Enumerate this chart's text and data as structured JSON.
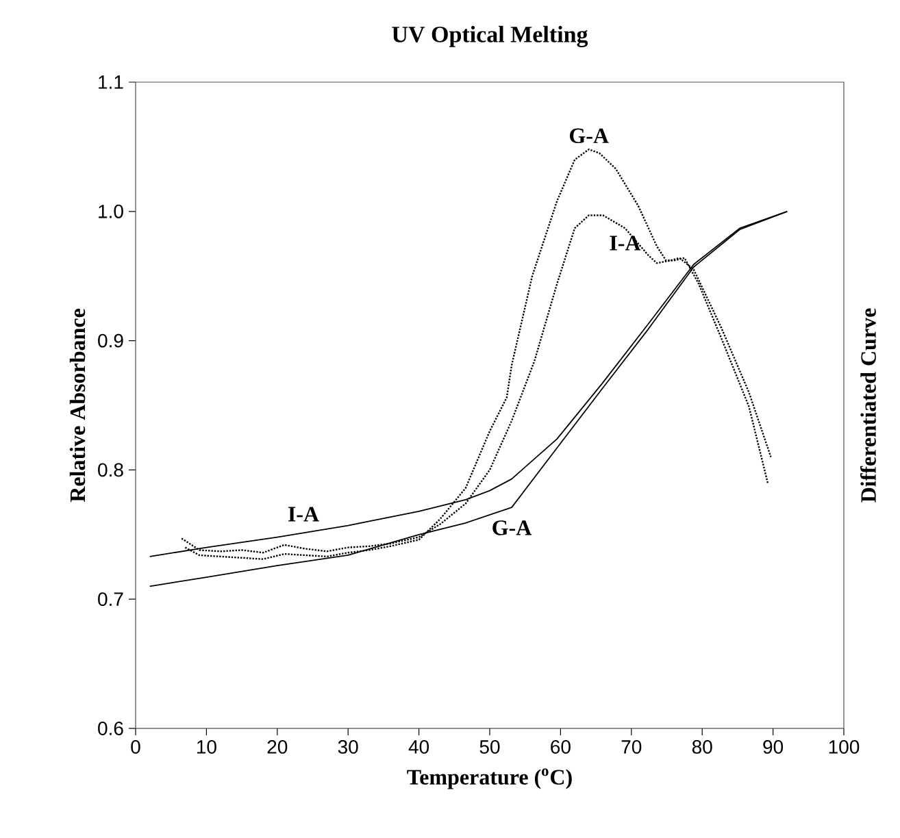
{
  "chart_data": {
    "type": "line",
    "title": "UV Optical Melting",
    "xlabel": "Temperature ($^{o}$C)",
    "ylabel": "Relative Absorbance",
    "y2label": "Differentiated Curve",
    "xlim": [
      0,
      100
    ],
    "xticks": [
      0,
      10,
      20,
      30,
      40,
      50,
      60,
      70,
      80,
      90,
      100
    ],
    "ylim": [
      0.6,
      1.1
    ],
    "yticks": [
      {
        "value": 0.6,
        "label": "0.6"
      },
      {
        "value": 0.7,
        "label": "0.7"
      },
      {
        "value": 0.8,
        "label": "0.8"
      },
      {
        "value": 0.9,
        "label": "0.9"
      },
      {
        "value": 1.0,
        "label": "1.0"
      },
      {
        "value": 1.1,
        "label": "1.1"
      }
    ],
    "grid": false,
    "legend": false,
    "marker": "none",
    "series": [
      {
        "name": "I-A",
        "color": "#000000",
        "line_style": "solid",
        "x": [
          2,
          10,
          20,
          30,
          40,
          46.6,
          50,
          53.1,
          59.5,
          65.9,
          72.4,
          78.8,
          85.3,
          92
        ],
        "values": [
          0.733,
          0.74,
          0.748,
          0.757,
          0.768,
          0.777,
          0.784,
          0.793,
          0.824,
          0.867,
          0.913,
          0.959,
          0.987,
          1.0
        ]
      },
      {
        "name": "G-A",
        "color": "#000000",
        "line_style": "solid",
        "x": [
          2,
          10,
          20,
          30,
          40,
          46.6,
          53.1,
          59.5,
          65.9,
          72.4,
          78.8,
          85.3,
          92
        ],
        "values": [
          0.71,
          0.717,
          0.726,
          0.734,
          0.75,
          0.759,
          0.771,
          0.817,
          0.863,
          0.909,
          0.957,
          0.986,
          1.0
        ]
      },
      {
        "name": "I-A",
        "color": "#000000",
        "line_style": "dotted",
        "x": [
          6.5,
          9,
          12,
          15,
          18,
          21,
          24,
          27,
          30,
          33,
          36,
          40,
          43,
          46.6,
          50,
          53.1,
          56.3,
          59.5,
          62,
          64,
          66,
          69.1,
          72.4,
          73.6,
          75.5,
          76.8,
          78.8,
          82.7,
          86.6,
          89.7
        ],
        "values": [
          0.747,
          0.738,
          0.737,
          0.738,
          0.736,
          0.742,
          0.739,
          0.737,
          0.74,
          0.741,
          0.743,
          0.748,
          0.758,
          0.774,
          0.8,
          0.838,
          0.884,
          0.944,
          0.987,
          0.997,
          0.997,
          0.987,
          0.966,
          0.96,
          0.962,
          0.964,
          0.955,
          0.91,
          0.86,
          0.81
        ]
      },
      {
        "name": "G-A",
        "color": "#000000",
        "line_style": "dotted",
        "x": [
          7,
          9,
          12,
          15,
          18,
          21,
          24,
          27,
          30,
          33,
          36,
          40,
          43,
          46.6,
          50,
          52.4,
          53.1,
          56,
          59.5,
          62,
          64,
          65.5,
          67.8,
          71,
          73.6,
          74.9,
          76,
          77.5,
          79.5,
          82.7,
          86.6,
          89.3
        ],
        "values": [
          0.74,
          0.734,
          0.733,
          0.732,
          0.731,
          0.735,
          0.734,
          0.733,
          0.736,
          0.738,
          0.741,
          0.746,
          0.762,
          0.786,
          0.83,
          0.856,
          0.881,
          0.95,
          1.008,
          1.04,
          1.048,
          1.045,
          1.033,
          1.004,
          0.973,
          0.962,
          0.962,
          0.964,
          0.944,
          0.902,
          0.849,
          0.789
        ]
      }
    ]
  }
}
